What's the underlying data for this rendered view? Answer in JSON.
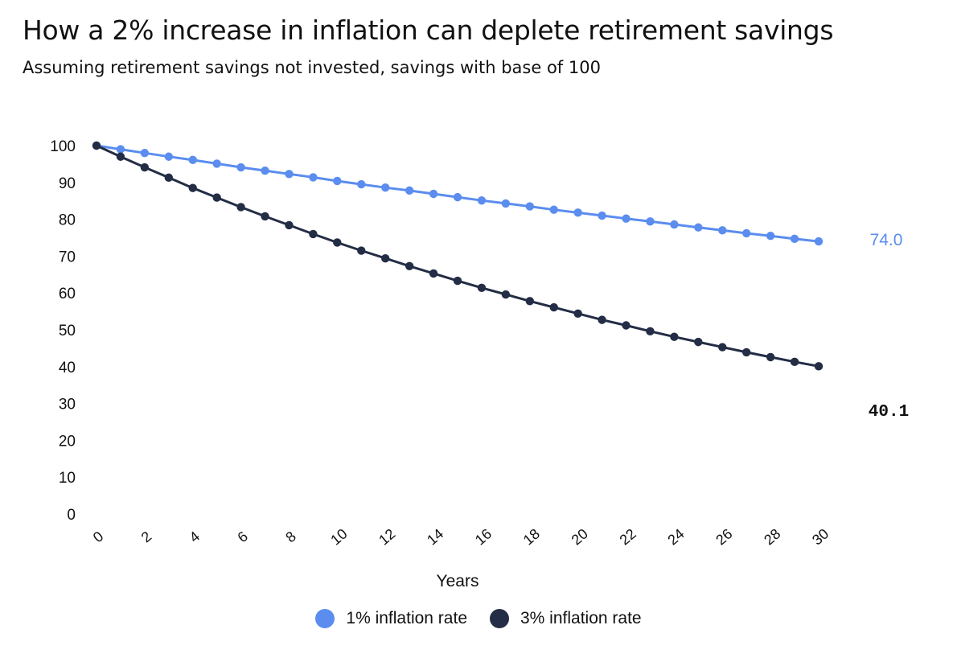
{
  "title": "How a 2% increase in inflation can deplete retirement savings",
  "subtitle": "Assuming retirement savings not invested, savings with base of 100",
  "chart_data": {
    "type": "line",
    "title": "How a 2% increase in inflation can deplete retirement savings",
    "subtitle": "Assuming retirement savings not invested, savings with base of 100",
    "xlabel": "Years",
    "ylabel": "",
    "xlim": [
      0,
      30
    ],
    "ylim": [
      0,
      100
    ],
    "x_ticks": [
      0,
      2,
      4,
      6,
      8,
      10,
      12,
      14,
      16,
      18,
      20,
      22,
      24,
      26,
      28,
      30
    ],
    "y_ticks": [
      0,
      10,
      20,
      30,
      40,
      50,
      60,
      70,
      80,
      90,
      100
    ],
    "grid": false,
    "legend_position": "bottom-center",
    "x": [
      0,
      1,
      2,
      3,
      4,
      5,
      6,
      7,
      8,
      9,
      10,
      11,
      12,
      13,
      14,
      15,
      16,
      17,
      18,
      19,
      20,
      21,
      22,
      23,
      24,
      25,
      26,
      27,
      28,
      29,
      30
    ],
    "series": [
      {
        "name": "1% inflation rate",
        "color": "#5b8def",
        "end_label": "74.0",
        "values": [
          100.0,
          99.0,
          98.0,
          97.0,
          96.1,
          95.1,
          94.1,
          93.2,
          92.3,
          91.4,
          90.4,
          89.5,
          88.6,
          87.8,
          86.9,
          86.0,
          85.1,
          84.3,
          83.5,
          82.6,
          81.8,
          81.0,
          80.2,
          79.4,
          78.6,
          77.8,
          77.0,
          76.2,
          75.5,
          74.7,
          74.0
        ]
      },
      {
        "name": "3% inflation rate",
        "color": "#232d45",
        "end_label": "40.1",
        "values": [
          100.0,
          97.0,
          94.1,
          91.3,
          88.5,
          85.9,
          83.3,
          80.8,
          78.4,
          76.0,
          73.7,
          71.5,
          69.4,
          67.3,
          65.3,
          63.3,
          61.4,
          59.6,
          57.8,
          56.1,
          54.4,
          52.7,
          51.2,
          49.6,
          48.1,
          46.7,
          45.3,
          43.9,
          42.6,
          41.3,
          40.1
        ]
      }
    ]
  }
}
